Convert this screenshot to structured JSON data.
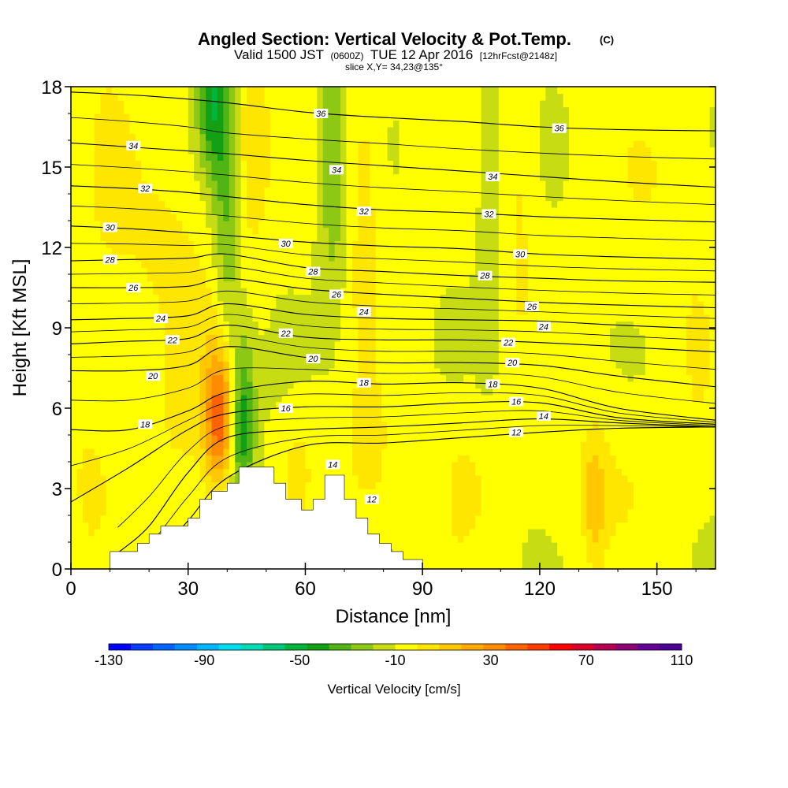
{
  "chart_data": {
    "type": "heatmap",
    "title": "Angled Section: Vertical Velocity & Pot.Temp.",
    "title_mark": "(C)",
    "subtitle_parts": [
      "Valid 1500 JST",
      "(0600Z)",
      "TUE 12 Apr 2016",
      "[12hrFcst@2148z]"
    ],
    "slice_label": "slice X,Y= 34,23@135°",
    "xlabel": "Distance [nm]",
    "ylabel": "Height [Kft MSL]",
    "xlim": [
      0,
      165
    ],
    "ylim": [
      0,
      18
    ],
    "xticks": [
      "0",
      "30",
      "60",
      "90",
      "120",
      "150"
    ],
    "yticks": [
      "0",
      "3",
      "6",
      "9",
      "12",
      "15",
      "18"
    ],
    "colorbar": {
      "title": "Vertical Velocity [cm/s]",
      "labels": [
        "-130",
        "-90",
        "-50",
        "-10",
        "30",
        "70",
        "110"
      ],
      "colors": [
        "#0000ff",
        "#0a3cff",
        "#0064ff",
        "#008cff",
        "#00b4ff",
        "#00dcf0",
        "#00dcb4",
        "#00c878",
        "#00b43c",
        "#14a014",
        "#50b414",
        "#8cc814",
        "#c8dc14",
        "#ffff00",
        "#ffe600",
        "#ffc800",
        "#ffaa00",
        "#ff8c00",
        "#ff6400",
        "#ff3c00",
        "#ff0000",
        "#dc0028",
        "#b40050",
        "#8c0078",
        "#640096",
        "#4b0096"
      ]
    },
    "contours": [
      {
        "label": "12",
        "points": [
          [
            12,
            -0.2
          ],
          [
            20,
            0.2
          ],
          [
            30,
            1.8
          ],
          [
            40,
            3.4
          ],
          [
            60,
            4.6
          ],
          [
            80,
            4.7
          ],
          [
            100,
            4.9
          ],
          [
            120,
            5.1
          ],
          [
            140,
            5.25
          ],
          [
            165,
            5.3
          ]
        ]
      },
      {
        "label": "14",
        "points": [
          [
            12,
            0.6
          ],
          [
            20,
            1.6
          ],
          [
            30,
            3.6
          ],
          [
            40,
            4.9
          ],
          [
            60,
            5.2
          ],
          [
            80,
            5.3
          ],
          [
            100,
            5.45
          ],
          [
            120,
            5.6
          ],
          [
            140,
            5.45
          ],
          [
            165,
            5.3
          ]
        ]
      },
      {
        "label": "16",
        "points": [
          [
            0,
            2.5
          ],
          [
            15,
            3.8
          ],
          [
            30,
            5.2
          ],
          [
            40,
            5.8
          ],
          [
            60,
            6.05
          ],
          [
            80,
            6.05
          ],
          [
            100,
            6.2
          ],
          [
            120,
            6.2
          ],
          [
            140,
            5.65
          ],
          [
            165,
            5.4
          ]
        ]
      },
      {
        "label": "18",
        "points": [
          [
            0,
            5.2
          ],
          [
            15,
            5.2
          ],
          [
            30,
            5.9
          ],
          [
            40,
            6.6
          ],
          [
            60,
            7.0
          ],
          [
            80,
            6.9
          ],
          [
            100,
            6.95
          ],
          [
            120,
            6.75
          ],
          [
            140,
            6.0
          ],
          [
            165,
            5.55
          ]
        ]
      },
      {
        "label": "20",
        "points": [
          [
            0,
            7.4
          ],
          [
            15,
            7.4
          ],
          [
            30,
            7.6
          ],
          [
            40,
            8.3
          ],
          [
            60,
            7.9
          ],
          [
            80,
            7.7
          ],
          [
            100,
            7.7
          ],
          [
            120,
            7.6
          ],
          [
            140,
            7.2
          ],
          [
            165,
            6.8
          ]
        ]
      },
      {
        "label": "22",
        "points": [
          [
            0,
            8.4
          ],
          [
            15,
            8.5
          ],
          [
            30,
            8.6
          ],
          [
            40,
            9.1
          ],
          [
            60,
            8.65
          ],
          [
            80,
            8.55
          ],
          [
            100,
            8.55
          ],
          [
            120,
            8.45
          ],
          [
            140,
            8.3
          ],
          [
            165,
            8.1
          ]
        ]
      },
      {
        "label": "24",
        "points": [
          [
            0,
            9.3
          ],
          [
            15,
            9.35
          ],
          [
            30,
            9.45
          ],
          [
            40,
            9.9
          ],
          [
            60,
            9.5
          ],
          [
            80,
            9.35
          ],
          [
            100,
            9.3
          ],
          [
            120,
            9.25
          ],
          [
            140,
            9.1
          ],
          [
            165,
            8.95
          ]
        ]
      },
      {
        "label": "26",
        "points": [
          [
            0,
            10.5
          ],
          [
            15,
            10.5
          ],
          [
            30,
            10.55
          ],
          [
            40,
            10.85
          ],
          [
            60,
            10.45
          ],
          [
            80,
            10.25
          ],
          [
            100,
            10.1
          ],
          [
            120,
            9.95
          ],
          [
            140,
            9.85
          ],
          [
            165,
            9.75
          ]
        ]
      },
      {
        "label": "28",
        "points": [
          [
            0,
            11.5
          ],
          [
            15,
            11.55
          ],
          [
            30,
            11.6
          ],
          [
            40,
            11.75
          ],
          [
            60,
            11.25
          ],
          [
            80,
            11.1
          ],
          [
            100,
            10.95
          ],
          [
            120,
            10.85
          ],
          [
            140,
            10.75
          ],
          [
            165,
            10.7
          ]
        ]
      },
      {
        "label": "30",
        "points": [
          [
            0,
            12.8
          ],
          [
            15,
            12.7
          ],
          [
            30,
            12.55
          ],
          [
            40,
            12.45
          ],
          [
            60,
            12.2
          ],
          [
            80,
            12.05
          ],
          [
            100,
            11.95
          ],
          [
            120,
            11.75
          ],
          [
            140,
            11.65
          ],
          [
            165,
            11.55
          ]
        ]
      },
      {
        "label": "32",
        "points": [
          [
            0,
            14.3
          ],
          [
            15,
            14.2
          ],
          [
            30,
            14.05
          ],
          [
            40,
            13.9
          ],
          [
            60,
            13.6
          ],
          [
            80,
            13.4
          ],
          [
            100,
            13.3
          ],
          [
            120,
            13.15
          ],
          [
            140,
            13.05
          ],
          [
            165,
            12.95
          ]
        ]
      },
      {
        "label": "34",
        "points": [
          [
            0,
            15.9
          ],
          [
            15,
            15.75
          ],
          [
            30,
            15.6
          ],
          [
            40,
            15.5
          ],
          [
            60,
            15.25
          ],
          [
            80,
            15.05
          ],
          [
            100,
            14.85
          ],
          [
            120,
            14.65
          ],
          [
            140,
            14.45
          ],
          [
            165,
            14.25
          ]
        ]
      },
      {
        "label": "36",
        "points": [
          [
            0,
            17.8
          ],
          [
            20,
            17.65
          ],
          [
            40,
            17.4
          ],
          [
            60,
            17.05
          ],
          [
            80,
            16.85
          ],
          [
            100,
            16.7
          ],
          [
            120,
            16.5
          ],
          [
            140,
            16.4
          ],
          [
            165,
            16.35
          ]
        ]
      }
    ],
    "contour_labels": [
      {
        "text": "34",
        "x": 16,
        "y": 15.8
      },
      {
        "text": "32",
        "x": 19,
        "y": 14.2
      },
      {
        "text": "30",
        "x": 10,
        "y": 12.75
      },
      {
        "text": "28",
        "x": 10,
        "y": 11.55
      },
      {
        "text": "26",
        "x": 16,
        "y": 10.5
      },
      {
        "text": "24",
        "x": 23,
        "y": 9.35
      },
      {
        "text": "22",
        "x": 26,
        "y": 8.55
      },
      {
        "text": "20",
        "x": 21,
        "y": 7.2
      },
      {
        "text": "18",
        "x": 19,
        "y": 5.4
      },
      {
        "text": "36",
        "x": 64,
        "y": 17.0
      },
      {
        "text": "34",
        "x": 68,
        "y": 14.9
      },
      {
        "text": "32",
        "x": 75,
        "y": 13.35
      },
      {
        "text": "30",
        "x": 55,
        "y": 12.15
      },
      {
        "text": "28",
        "x": 62,
        "y": 11.1
      },
      {
        "text": "26",
        "x": 68,
        "y": 10.25
      },
      {
        "text": "24",
        "x": 75,
        "y": 9.6
      },
      {
        "text": "22",
        "x": 55,
        "y": 8.8
      },
      {
        "text": "20",
        "x": 62,
        "y": 7.85
      },
      {
        "text": "18",
        "x": 75,
        "y": 6.95
      },
      {
        "text": "16",
        "x": 55,
        "y": 6.0
      },
      {
        "text": "14",
        "x": 67,
        "y": 3.9
      },
      {
        "text": "12",
        "x": 77,
        "y": 2.6
      },
      {
        "text": "36",
        "x": 125,
        "y": 16.45
      },
      {
        "text": "34",
        "x": 108,
        "y": 14.65
      },
      {
        "text": "32",
        "x": 107,
        "y": 13.25
      },
      {
        "text": "30",
        "x": 115,
        "y": 11.75
      },
      {
        "text": "28",
        "x": 106,
        "y": 10.95
      },
      {
        "text": "26",
        "x": 118,
        "y": 9.8
      },
      {
        "text": "24",
        "x": 121,
        "y": 9.05
      },
      {
        "text": "22",
        "x": 112,
        "y": 8.45
      },
      {
        "text": "20",
        "x": 113,
        "y": 7.7
      },
      {
        "text": "18",
        "x": 108,
        "y": 6.9
      },
      {
        "text": "16",
        "x": 114,
        "y": 6.25
      },
      {
        "text": "14",
        "x": 121,
        "y": 5.7
      },
      {
        "text": "12",
        "x": 114,
        "y": 5.1
      }
    ],
    "terrain": [
      [
        9,
        0
      ],
      [
        10,
        0
      ],
      [
        10,
        0.65
      ],
      [
        17,
        0.65
      ],
      [
        17,
        0.95
      ],
      [
        20,
        0.95
      ],
      [
        20,
        1.3
      ],
      [
        23,
        1.3
      ],
      [
        23,
        1.6
      ],
      [
        30,
        1.6
      ],
      [
        30,
        1.9
      ],
      [
        33,
        1.9
      ],
      [
        33,
        2.6
      ],
      [
        36,
        2.6
      ],
      [
        36,
        2.9
      ],
      [
        40,
        2.9
      ],
      [
        40,
        3.2
      ],
      [
        43,
        3.2
      ],
      [
        43,
        3.8
      ],
      [
        52,
        3.8
      ],
      [
        52,
        3.2
      ],
      [
        55,
        3.2
      ],
      [
        55,
        2.6
      ],
      [
        59,
        2.6
      ],
      [
        59,
        2.2
      ],
      [
        62,
        2.2
      ],
      [
        62,
        2.6
      ],
      [
        65,
        2.6
      ],
      [
        65,
        3.5
      ],
      [
        70,
        3.5
      ],
      [
        70,
        2.6
      ],
      [
        73,
        2.6
      ],
      [
        73,
        1.9
      ],
      [
        76,
        1.9
      ],
      [
        76,
        1.3
      ],
      [
        79,
        1.3
      ],
      [
        79,
        0.95
      ],
      [
        82,
        0.95
      ],
      [
        82,
        0.65
      ],
      [
        85,
        0.65
      ],
      [
        85,
        0.35
      ],
      [
        90,
        0.35
      ],
      [
        90,
        0
      ]
    ],
    "wfield": {
      "base": 2,
      "cells": [
        {
          "x": 38,
          "y": 5.5,
          "sx": 2.5,
          "sy": 1.7,
          "v": 48
        },
        {
          "x": 39,
          "y": 7.4,
          "sx": 4,
          "sy": 2.5,
          "v": 16
        },
        {
          "x": 44,
          "y": 5.5,
          "sx": 2.2,
          "sy": 2.2,
          "v": -42
        },
        {
          "x": 40,
          "y": 13,
          "sx": 2.6,
          "sy": 5,
          "v": -26
        },
        {
          "x": 36,
          "y": 17.5,
          "sx": 2.5,
          "sy": 2,
          "v": -36
        },
        {
          "x": 46,
          "y": 16,
          "sx": 3,
          "sy": 3,
          "v": 16
        },
        {
          "x": 67,
          "y": 15.5,
          "sx": 2.5,
          "sy": 4,
          "v": -20
        },
        {
          "x": 75,
          "y": 14,
          "sx": 3,
          "sy": 4,
          "v": 14
        },
        {
          "x": 107,
          "y": 13,
          "sx": 2,
          "sy": 4,
          "v": -10
        },
        {
          "x": 115,
          "y": 13.5,
          "sx": 3,
          "sy": 4,
          "v": 10
        },
        {
          "x": 25,
          "y": 12,
          "sx": 10,
          "sy": 3,
          "v": 10
        },
        {
          "x": 10,
          "y": 15,
          "sx": 4,
          "sy": 3,
          "v": 8
        },
        {
          "x": 58,
          "y": 3.8,
          "sx": 3,
          "sy": 1.5,
          "v": 12
        },
        {
          "x": 76,
          "y": 4.2,
          "sx": 4,
          "sy": 1.8,
          "v": 12
        },
        {
          "x": 100,
          "y": 3.5,
          "sx": 8,
          "sy": 2,
          "v": 9
        },
        {
          "x": 134,
          "y": 2.5,
          "sx": 2,
          "sy": 1.6,
          "v": 20
        },
        {
          "x": 138,
          "y": 3.6,
          "sx": 10,
          "sy": 2,
          "v": 8
        },
        {
          "x": 160,
          "y": 8,
          "sx": 4,
          "sy": 3,
          "v": 6
        },
        {
          "x": 96,
          "y": 3.2,
          "sx": 1,
          "sy": 1,
          "v": -8
        },
        {
          "x": 5,
          "y": 3.5,
          "sx": 4,
          "sy": 2,
          "v": 10
        },
        {
          "x": 28,
          "y": 5.5,
          "sx": 5,
          "sy": 2,
          "v": 8
        },
        {
          "x": 150,
          "y": 14,
          "sx": 10,
          "sy": 3,
          "v": 6
        }
      ]
    }
  }
}
